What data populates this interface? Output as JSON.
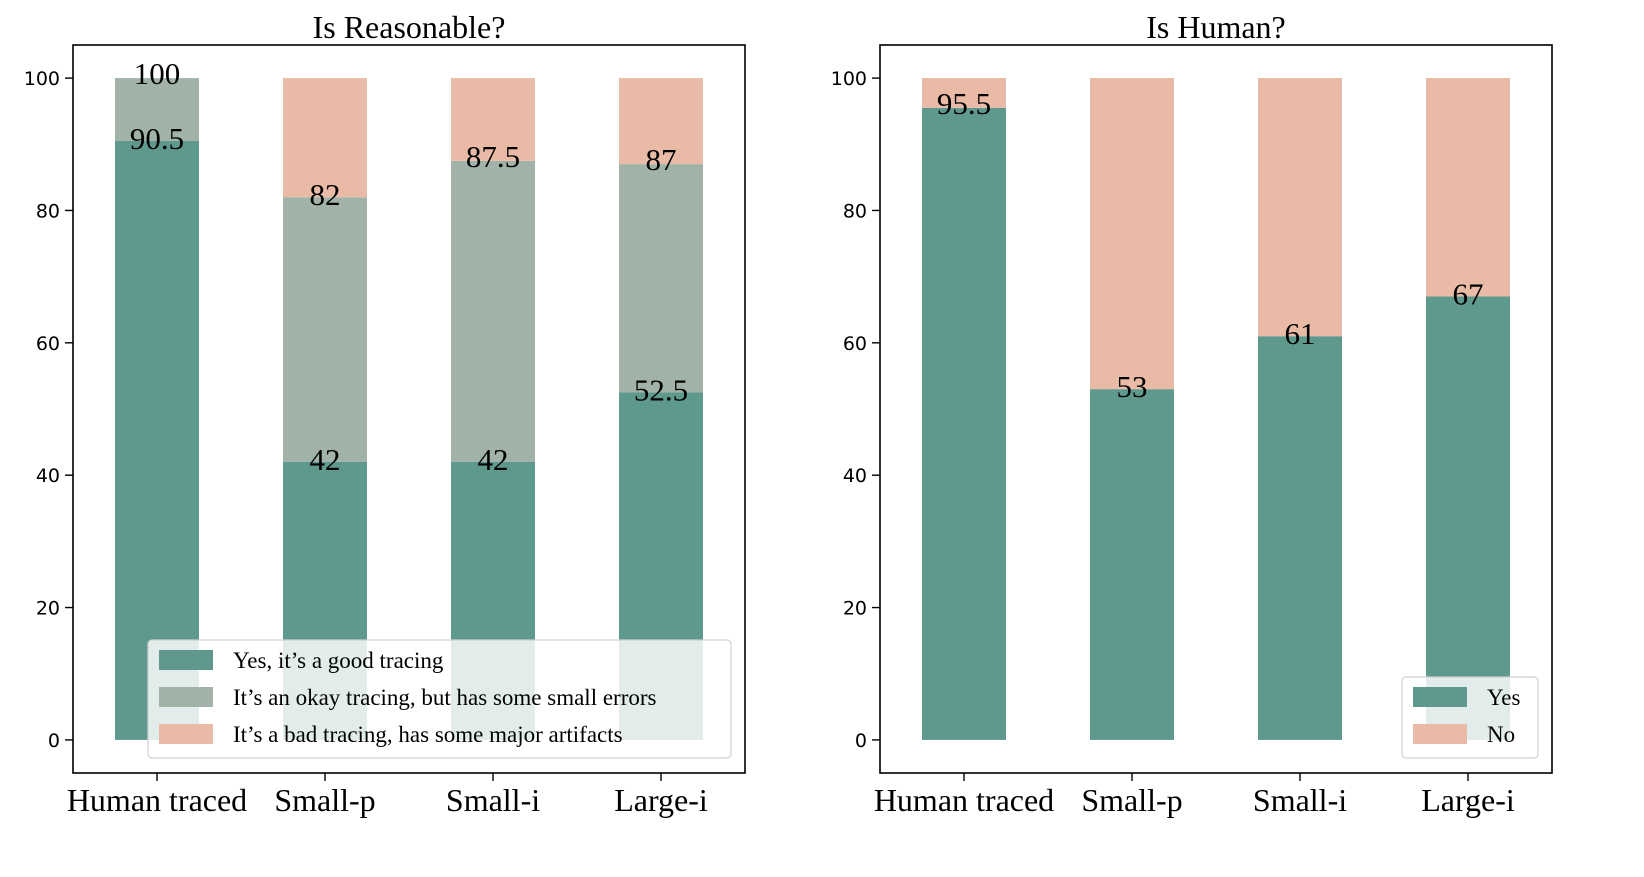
{
  "chart_data": [
    {
      "type": "bar",
      "stacked": true,
      "title": "Is Reasonable?",
      "categories": [
        "Human traced",
        "Small-p",
        "Small-i",
        "Large-i"
      ],
      "series": [
        {
          "name": "Yes, it’s a good tracing",
          "values": [
            90.5,
            42,
            42,
            52.5
          ],
          "color": "#5f998e"
        },
        {
          "name": "It’s an okay tracing, but has some small errors",
          "values": [
            9.5,
            40,
            45.5,
            34.5
          ],
          "color": "#a1b3a8"
        },
        {
          "name": "It’s a bad tracing, has some major artifacts",
          "values": [
            0,
            18,
            12.5,
            13
          ],
          "color": "#e9bba6"
        }
      ],
      "data_labels": [
        [
          "90.5",
          "42",
          "42",
          "52.5"
        ],
        [
          "100",
          "82",
          "87.5",
          "87"
        ]
      ],
      "yticks": [
        0,
        20,
        40,
        60,
        80,
        100
      ],
      "ylim": [
        0,
        100
      ],
      "xlabel": "",
      "ylabel": "",
      "legend_position": "lower-right"
    },
    {
      "type": "bar",
      "stacked": true,
      "title": "Is Human?",
      "categories": [
        "Human traced",
        "Small-p",
        "Small-i",
        "Large-i"
      ],
      "series": [
        {
          "name": "Yes",
          "values": [
            95.5,
            53,
            61,
            67
          ],
          "color": "#5f998e"
        },
        {
          "name": "No",
          "values": [
            4.5,
            47,
            39,
            33
          ],
          "color": "#e9bba6"
        }
      ],
      "data_labels": [
        [
          "95.5",
          "53",
          "61",
          "67"
        ]
      ],
      "yticks": [
        0,
        20,
        40,
        60,
        80,
        100
      ],
      "ylim": [
        0,
        100
      ],
      "xlabel": "",
      "ylabel": "",
      "legend_position": "lower-right"
    }
  ]
}
